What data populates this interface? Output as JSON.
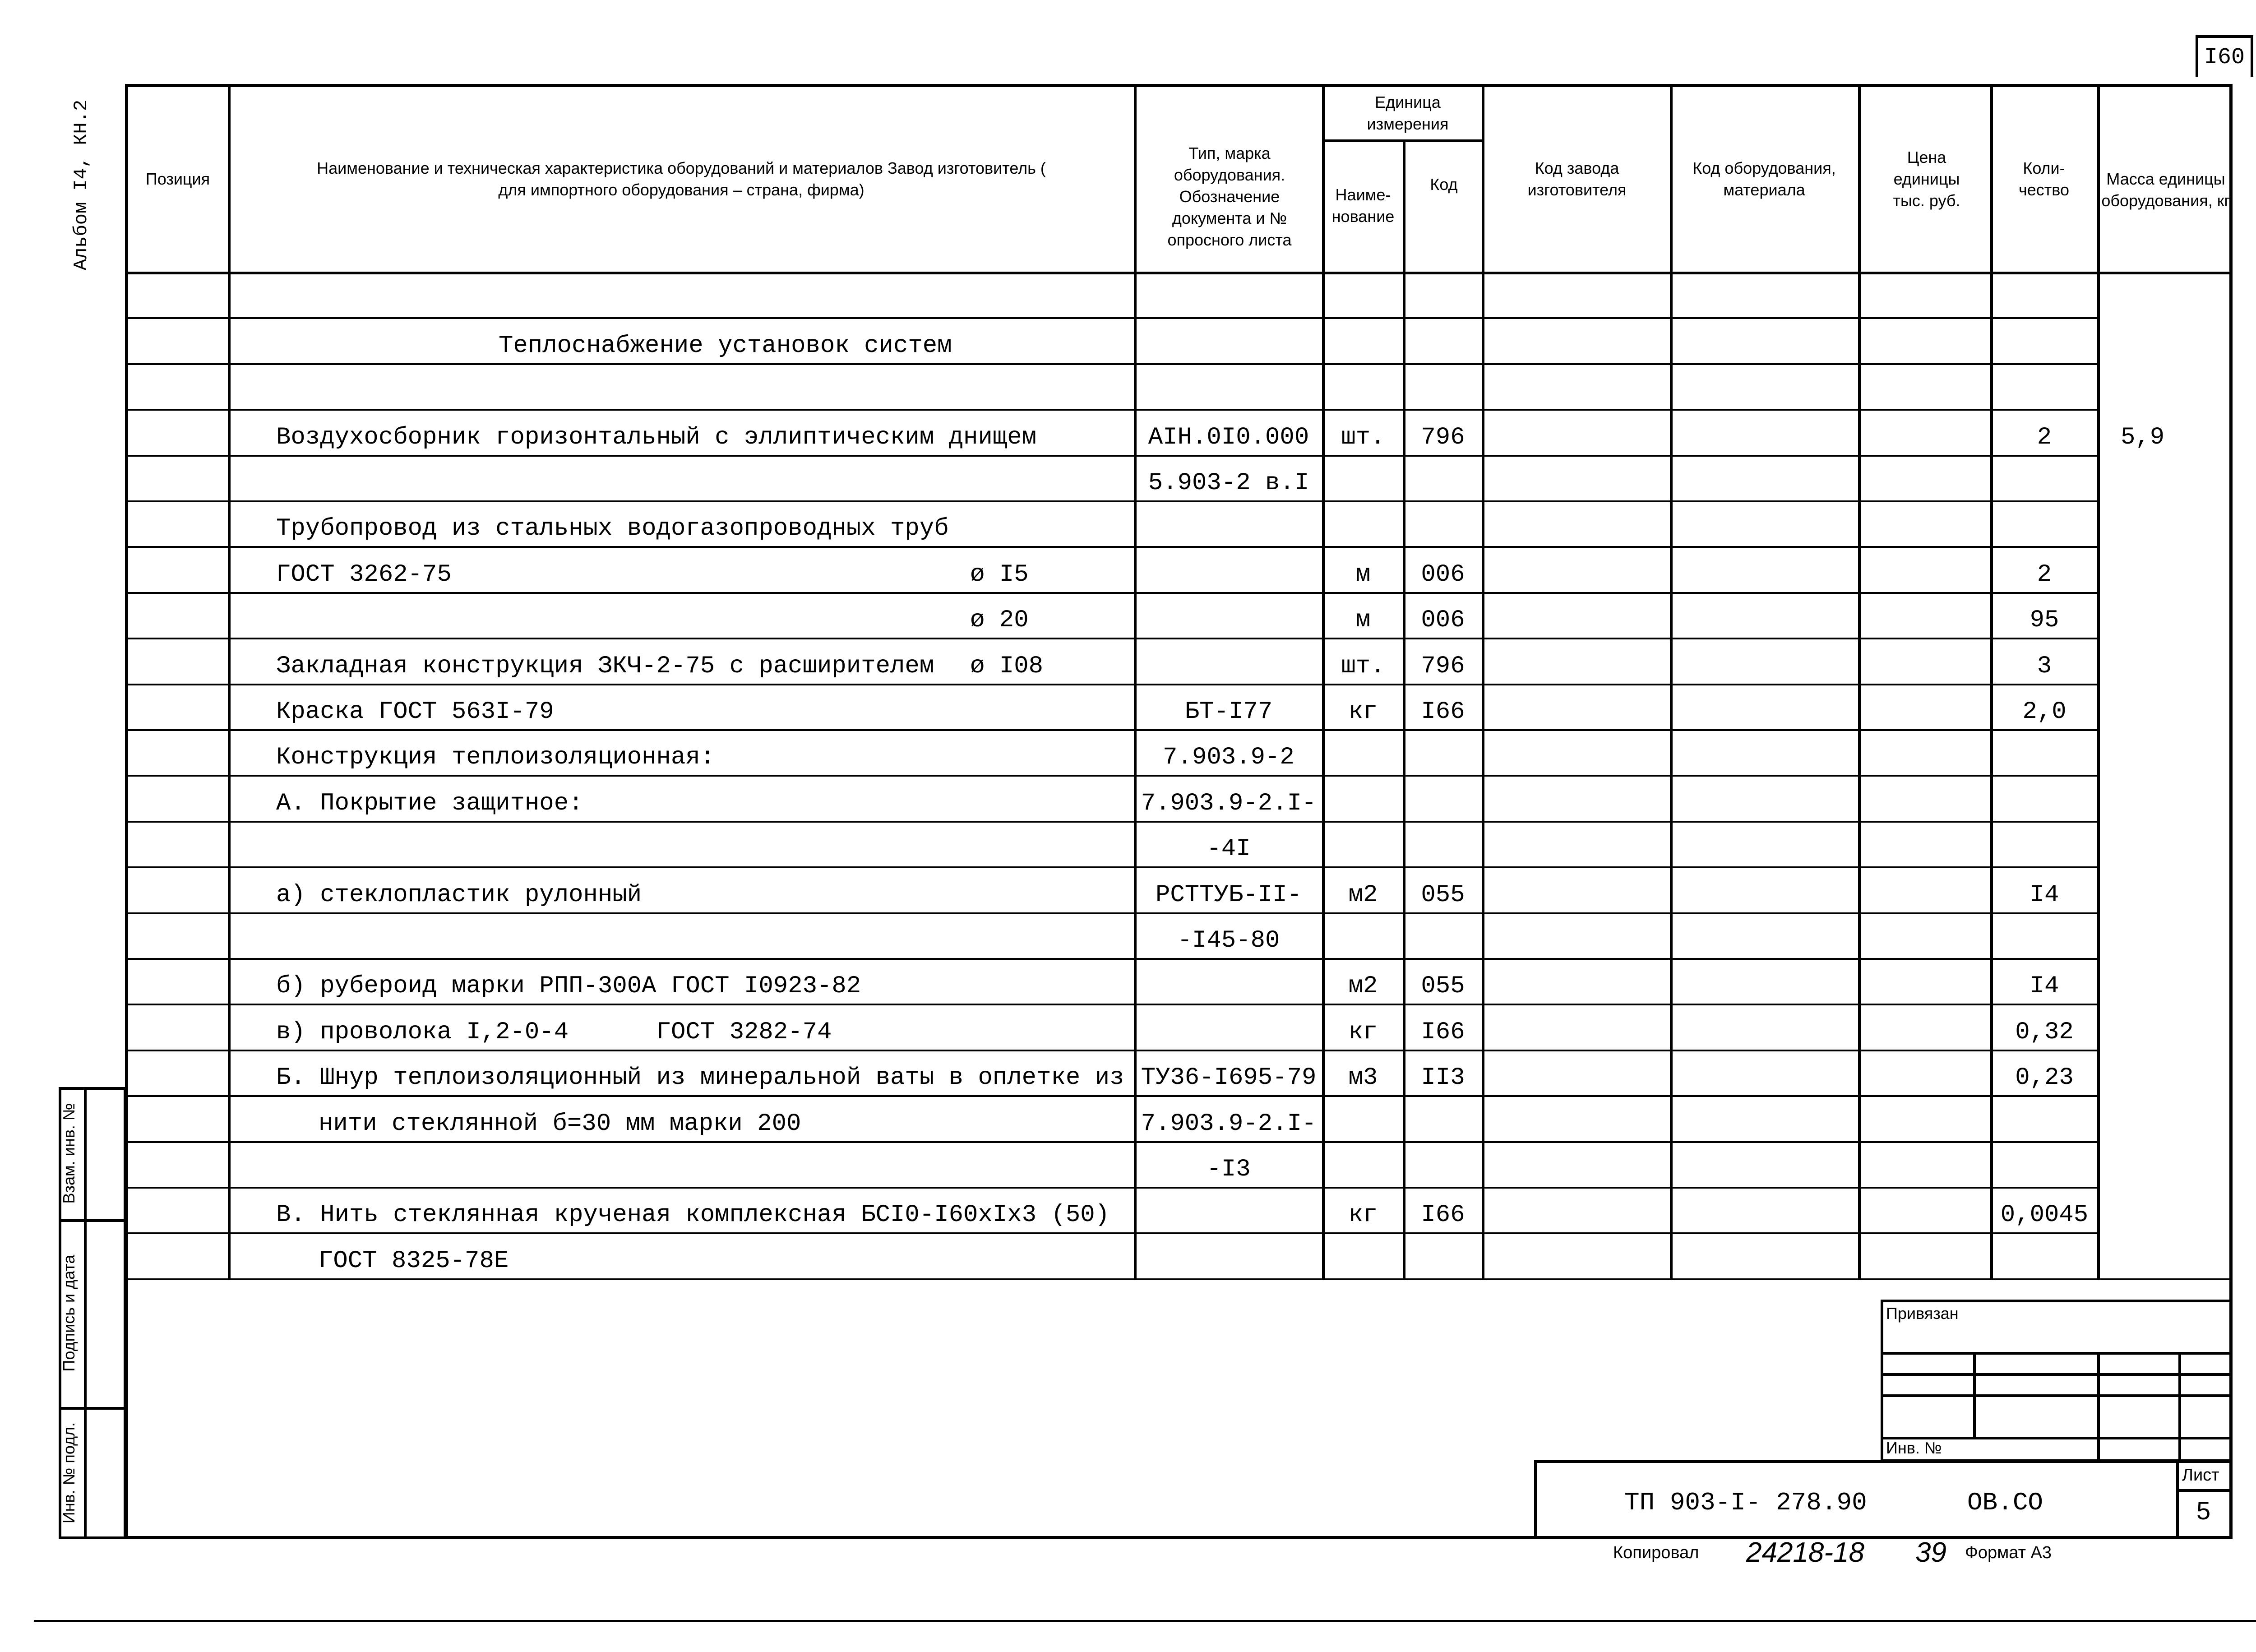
{
  "sheet_number_top": "I60",
  "album_label": "Альбом I4, КН.2",
  "side_stamp": [
    "Взам. инв. №",
    "Подпись и дата",
    "Инв. № подл."
  ],
  "header": {
    "position": "Позиция",
    "name": "Наименование и техническая характеристика оборудований и материалов Завод изготовитель ( для импортного оборудования – страна, фирма)",
    "type": "Тип, марка оборудования. Обозначение документа и № опросного листа",
    "unit_group": "Единица измерения",
    "unit_name": "Наиме- нование",
    "unit_code": "Код",
    "factory_code": "Код завода изготовителя",
    "equipment_code": "Код оборудования, материала",
    "price": "Цена единицы тыс. руб.",
    "quantity": "Коли- чество",
    "mass": "Масса единицы оборудования, кг"
  },
  "rows": [
    {
      "name": "",
      "dia": "",
      "type": "",
      "unit": "",
      "code": "",
      "qty": "",
      "mass": ""
    },
    {
      "name": "Теплоснабжение установок систем",
      "heading": true,
      "dia": "",
      "type": "",
      "unit": "",
      "code": "",
      "qty": "",
      "mass": ""
    },
    {
      "name": "",
      "dia": "",
      "type": "",
      "unit": "",
      "code": "",
      "qty": "",
      "mass": ""
    },
    {
      "name": "Воздухосборник горизонтальный с эллиптическим днищем",
      "dia": "",
      "type": "AIH.0I0.000",
      "unit": "шт.",
      "code": "796",
      "qty": "2",
      "mass": "5,9"
    },
    {
      "name": "",
      "dia": "",
      "type": "5.903-2 в.I",
      "unit": "",
      "code": "",
      "qty": "",
      "mass": ""
    },
    {
      "name": "Трубопровод из стальных водогазопроводных труб",
      "dia": "",
      "type": "",
      "unit": "",
      "code": "",
      "qty": "",
      "mass": ""
    },
    {
      "name": "ГОСТ 3262-75",
      "dia": "ø I5",
      "type": "",
      "unit": "м",
      "code": "006",
      "qty": "2",
      "mass": ""
    },
    {
      "name": "",
      "dia": "ø 20",
      "type": "",
      "unit": "м",
      "code": "006",
      "qty": "95",
      "mass": ""
    },
    {
      "name": "Закладная конструкция ЗКЧ-2-75 с расширителем",
      "dia": "ø I08",
      "type": "",
      "unit": "шт.",
      "code": "796",
      "qty": "3",
      "mass": ""
    },
    {
      "name": "Краска ГОСТ 563I-79",
      "dia": "",
      "type": "БТ-I77",
      "unit": "кг",
      "code": "I66",
      "qty": "2,0",
      "mass": ""
    },
    {
      "name": "Конструкция теплоизоляционная:",
      "dia": "",
      "type": "7.903.9-2",
      "unit": "",
      "code": "",
      "qty": "",
      "mass": ""
    },
    {
      "name": "А. Покрытие защитное:",
      "dia": "",
      "type": "7.903.9-2.I-",
      "unit": "",
      "code": "",
      "qty": "",
      "mass": ""
    },
    {
      "name": "",
      "dia": "",
      "type": "-4I",
      "unit": "",
      "code": "",
      "qty": "",
      "mass": ""
    },
    {
      "name": "а) стеклопластик рулонный",
      "dia": "",
      "type": "РСТТУБ-II-",
      "unit": "м2",
      "code": "055",
      "qty": "I4",
      "mass": ""
    },
    {
      "name": "",
      "dia": "",
      "type": "-I45-80",
      "unit": "",
      "code": "",
      "qty": "",
      "mass": ""
    },
    {
      "name": "б) рубероид марки РПП-300А ГОСТ I0923-82",
      "dia": "",
      "type": "",
      "unit": "м2",
      "code": "055",
      "qty": "I4",
      "mass": ""
    },
    {
      "name": "в) проволока I,2-0-4      ГОСТ 3282-74",
      "dia": "",
      "type": "",
      "unit": "кг",
      "code": "I66",
      "qty": "0,32",
      "mass": ""
    },
    {
      "name": "Б. Шнур теплоизоляционный из минеральной ваты в оплетке из",
      "dia": "",
      "type": "ТУ36-I695-79",
      "unit": "м3",
      "code": "II3",
      "qty": "0,23",
      "mass": ""
    },
    {
      "name": "нити стеклянной б=30 мм марки 200",
      "indent": true,
      "dia": "",
      "type": "7.903.9-2.I-",
      "unit": "",
      "code": "",
      "qty": "",
      "mass": ""
    },
    {
      "name": "",
      "dia": "",
      "type": "-I3",
      "unit": "",
      "code": "",
      "qty": "",
      "mass": ""
    },
    {
      "name": "В. Нить стеклянная крученая комплексная БСI0-I60xIx3 (50)",
      "dia": "",
      "type": "",
      "unit": "кг",
      "code": "I66",
      "qty": "0,0045",
      "mass": ""
    },
    {
      "name": "ГОСТ 8325-78Е",
      "indent": true,
      "dia": "",
      "type": "",
      "unit": "",
      "code": "",
      "qty": "",
      "mass": ""
    }
  ],
  "stamp": {
    "attached": "Привязан",
    "inv_no": "Инв. №",
    "designation": "ТП 903-I- 278.90",
    "mark": "ОВ.СО",
    "sheet_label": "Лист",
    "sheet": "5"
  },
  "footer": {
    "copied": "Копировал",
    "order_no": "24218-18",
    "copy_no": "39",
    "format": "Формат А3"
  }
}
